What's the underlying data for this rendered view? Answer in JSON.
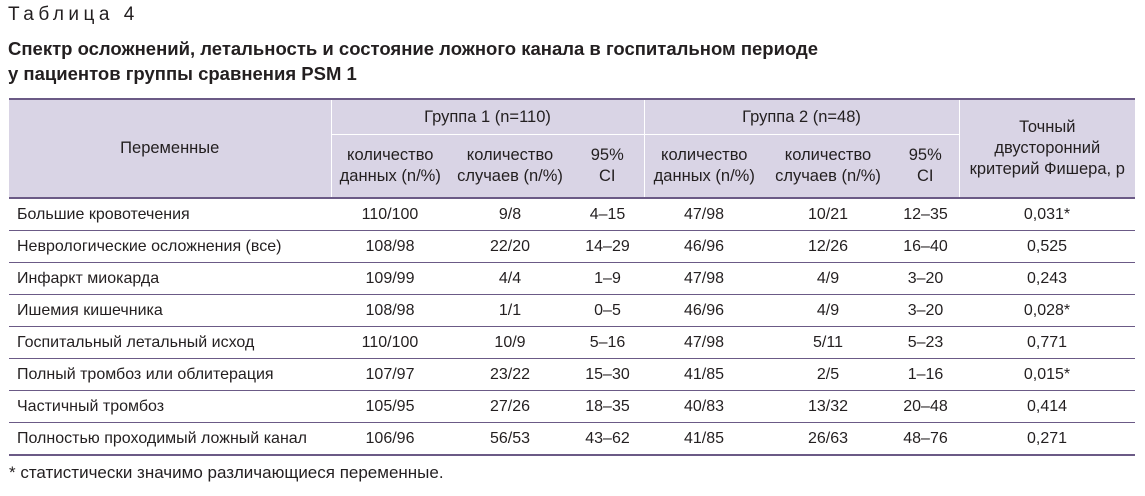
{
  "caption": "Таблица 4",
  "title_line1": "Спектр осложнений, летальность и состояние ложного канала в госпитальном периоде",
  "title_line2": "у пациентов группы сравнения PSM 1",
  "header": {
    "variables": "Переменные",
    "group1": "Группа 1 (n=110)",
    "group2": "Группа 2 (n=48)",
    "fisher_1": "Точный",
    "fisher_2": "двусторонний",
    "fisher_3": "критерий Фишера, p",
    "data_count_1": "количество",
    "data_count_2": "данных (n/%)",
    "case_count_1": "количество",
    "case_count_2": "случаев (n/%)",
    "ci_1": "95%",
    "ci_2": "CI"
  },
  "rows": [
    {
      "name": "Большие кровотечения",
      "g1_data": "110/100",
      "g1_cases": "9/8",
      "g1_ci": "4–15",
      "g2_data": "47/98",
      "g2_cases": "10/21",
      "g2_ci": "12–35",
      "p": "0,031*"
    },
    {
      "name": "Неврологические осложнения (все)",
      "g1_data": "108/98",
      "g1_cases": "22/20",
      "g1_ci": "14–29",
      "g2_data": "46/96",
      "g2_cases": "12/26",
      "g2_ci": "16–40",
      "p": "0,525"
    },
    {
      "name": "Инфаркт миокарда",
      "g1_data": "109/99",
      "g1_cases": "4/4",
      "g1_ci": "1–9",
      "g2_data": "47/98",
      "g2_cases": "4/9",
      "g2_ci": "3–20",
      "p": "0,243"
    },
    {
      "name": "Ишемия кишечника",
      "g1_data": "108/98",
      "g1_cases": "1/1",
      "g1_ci": "0–5",
      "g2_data": "46/96",
      "g2_cases": "4/9",
      "g2_ci": "3–20",
      "p": "0,028*"
    },
    {
      "name": "Госпитальный летальный исход",
      "g1_data": "110/100",
      "g1_cases": "10/9",
      "g1_ci": "5–16",
      "g2_data": "47/98",
      "g2_cases": "5/11",
      "g2_ci": "5–23",
      "p": "0,771"
    },
    {
      "name": "Полный тромбоз или облитерация",
      "g1_data": "107/97",
      "g1_cases": "23/22",
      "g1_ci": "15–30",
      "g2_data": "41/85",
      "g2_cases": "2/5",
      "g2_ci": "1–16",
      "p": "0,015*"
    },
    {
      "name": "Частичный тромбоз",
      "g1_data": "105/95",
      "g1_cases": "27/26",
      "g1_ci": "18–35",
      "g2_data": "40/83",
      "g2_cases": "13/32",
      "g2_ci": "20–48",
      "p": "0,414"
    },
    {
      "name": "Полностью проходимый ложный канал",
      "g1_data": "106/96",
      "g1_cases": "56/53",
      "g1_ci": "43–62",
      "g2_data": "41/85",
      "g2_cases": "26/63",
      "g2_ci": "48–76",
      "p": "0,271"
    }
  ],
  "footnote": "* статистически значимо различающиеся переменные."
}
